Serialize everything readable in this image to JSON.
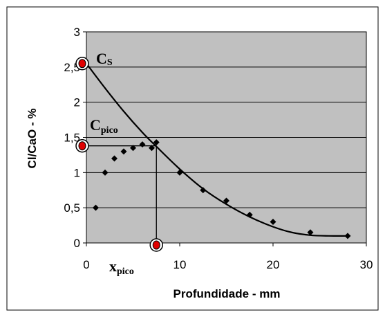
{
  "chart_data": {
    "type": "scatter",
    "xlabel": "Profundidade - mm",
    "ylabel": "Cl/CaO - %",
    "xlim": [
      0,
      30
    ],
    "ylim": [
      0,
      3
    ],
    "x_ticks": [
      "0",
      "10",
      "20",
      "30"
    ],
    "y_ticks": [
      "0",
      "0,5",
      "1",
      "1,5",
      "2",
      "2,5",
      "3"
    ],
    "grid": "horizontal",
    "background_color": "#c0c0c0",
    "marker_color": "#000000",
    "highlight_color": "#e00000",
    "series": [
      {
        "type": "scatter",
        "x": [
          1,
          2,
          3,
          4,
          5,
          6,
          7,
          7.5,
          10,
          12.5,
          15,
          17.5,
          20,
          24,
          28
        ],
        "y": [
          0.5,
          1.0,
          1.2,
          1.3,
          1.35,
          1.4,
          1.35,
          1.43,
          1.0,
          0.75,
          0.6,
          0.4,
          0.3,
          0.15,
          0.1
        ]
      },
      {
        "type": "line",
        "x": [
          0,
          2,
          4,
          6,
          7.5,
          10,
          12.5,
          15,
          17.5,
          20,
          22,
          24,
          26,
          28
        ],
        "y": [
          2.55,
          2.2,
          1.87,
          1.57,
          1.37,
          1.05,
          0.77,
          0.55,
          0.37,
          0.23,
          0.15,
          0.11,
          0.1,
          0.1
        ]
      }
    ],
    "annotations": {
      "cs": {
        "main": "C",
        "sub": "S",
        "y": 2.55
      },
      "cpico": {
        "main": "C",
        "sub": "pico",
        "y": 1.38
      },
      "xpico": {
        "main": "x",
        "sub": "pico",
        "x": 7.5
      }
    }
  }
}
